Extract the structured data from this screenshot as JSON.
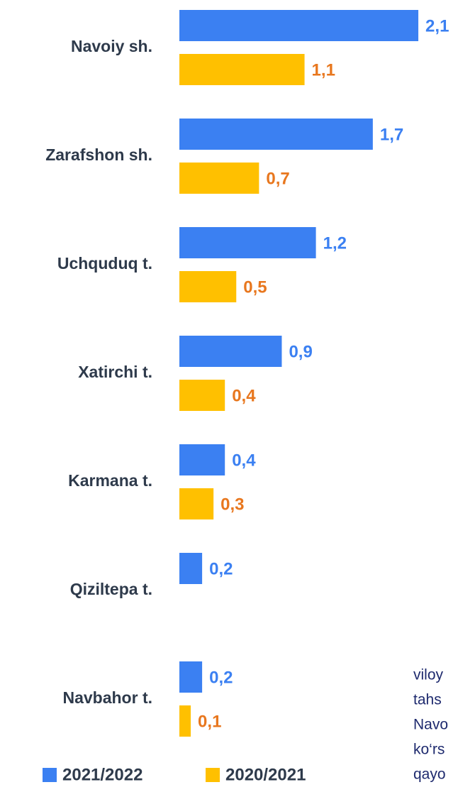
{
  "chart_data": {
    "type": "bar",
    "orientation": "horizontal",
    "categories": [
      "Navoiy sh.",
      "Zarafshon sh.",
      "Uchquduq t.",
      "Xatirchi t.",
      "Karmana t.",
      "Qiziltepa t.",
      "Navbahor t."
    ],
    "series": [
      {
        "name": "2021/2022",
        "color": "#3b80f2",
        "label_color": "#3b80f2",
        "values": [
          2.1,
          1.7,
          1.2,
          0.9,
          0.4,
          0.2,
          0.2
        ],
        "value_labels": [
          "2,1",
          "1,7",
          "1,2",
          "0,9",
          "0,4",
          "0,2",
          "0,2"
        ]
      },
      {
        "name": "2020/2021",
        "color": "#ffc000",
        "label_color": "#e8771e",
        "values": [
          1.1,
          0.7,
          0.5,
          0.4,
          0.3,
          null,
          0.1
        ],
        "value_labels": [
          "1,1",
          "0,7",
          "0,5",
          "0,4",
          "0,3",
          null,
          "0,1"
        ]
      }
    ],
    "xlim": [
      0,
      2.4
    ]
  },
  "side_text": [
    "viloy",
    "tahs",
    "Navo",
    "ko‘rs",
    "qayo"
  ]
}
